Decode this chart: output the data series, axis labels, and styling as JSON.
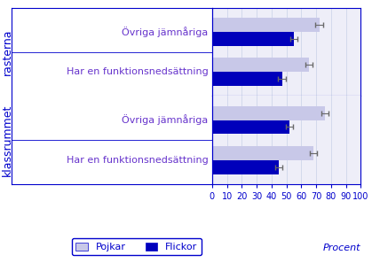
{
  "groups": [
    "rasterna",
    "klassrummet"
  ],
  "categories": [
    "Övriga jämnåriga",
    "Har en funktionsnedsättning"
  ],
  "pojkar_values": [
    [
      72,
      65
    ],
    [
      76,
      68
    ]
  ],
  "flickor_values": [
    [
      55,
      47
    ],
    [
      52,
      45
    ]
  ],
  "pojkar_errors": [
    [
      2.5,
      2.5
    ],
    [
      2.5,
      2.5
    ]
  ],
  "flickor_errors": [
    [
      2.5,
      2.5
    ],
    [
      2.5,
      2.5
    ]
  ],
  "pojkar_color": "#c8c8e8",
  "flickor_color": "#0000bb",
  "xlim": [
    0,
    100
  ],
  "xticks": [
    0,
    10,
    20,
    30,
    40,
    50,
    60,
    70,
    80,
    90,
    100
  ],
  "xlabel": "Procent",
  "group_labels": [
    "rasterna",
    "klassrummet"
  ],
  "bar_height": 0.35,
  "text_color": "#6633cc",
  "axis_color": "#0000cc",
  "background_color": "#ffffff",
  "plot_bg_color": "#eeeef8",
  "label_fontsize": 8,
  "tick_fontsize": 7,
  "group_label_fontsize": 9
}
